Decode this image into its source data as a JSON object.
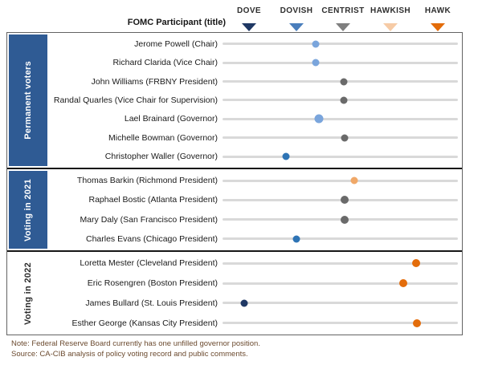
{
  "header": {
    "participant_label": "FOMC Participant (title)",
    "scale": [
      {
        "label": "DOVE",
        "color": "#1F3864"
      },
      {
        "label": "DOVISH",
        "color": "#4A7EBC"
      },
      {
        "label": "CENTRIST",
        "color": "#7F7F7F"
      },
      {
        "label": "HAWKISH",
        "color": "#F6CBA6"
      },
      {
        "label": "HAWK",
        "color": "#E36C0A"
      }
    ]
  },
  "chart_data": {
    "type": "scatter",
    "title": "",
    "x_axis": {
      "labels": [
        "DOVE",
        "DOVISH",
        "CENTRIST",
        "HAWKISH",
        "HAWK"
      ],
      "anchor_pct": [
        11.6,
        31.6,
        51.4,
        71.4,
        91.5
      ],
      "range_pct": [
        0,
        100
      ]
    },
    "palette": {
      "light_blue": "#7AA5DC",
      "medium_blue": "#2E74B5",
      "gray": "#6A6A6A",
      "light_orange": "#F0A868",
      "orange": "#E36C0A",
      "dark_navy": "#1F3864",
      "track": "#D9D9D9",
      "sidebar_blue": "#2F5B94"
    },
    "groups": [
      {
        "label": "Permanent voters",
        "sidebar_style": "blue",
        "members": [
          {
            "name": "Jerome Powell (Chair)",
            "position_pct": 39.5,
            "color_key": "light_blue",
            "size": 9
          },
          {
            "name": "Richard Clarida (Vice Chair)",
            "position_pct": 39.5,
            "color_key": "light_blue",
            "size": 9
          },
          {
            "name": "John Williams (FRBNY President)",
            "position_pct": 51.7,
            "color_key": "gray",
            "size": 9
          },
          {
            "name": "Randal Quarles (Vice Chair for Supervision)",
            "position_pct": 51.7,
            "color_key": "gray",
            "size": 9
          },
          {
            "name": "Lael Brainard (Governor)",
            "position_pct": 40.8,
            "color_key": "light_blue",
            "size": 11
          },
          {
            "name": "Michelle Bowman (Governor)",
            "position_pct": 52.0,
            "color_key": "gray",
            "size": 9
          },
          {
            "name": "Christopher Waller (Governor)",
            "position_pct": 26.9,
            "color_key": "medium_blue",
            "size": 9
          }
        ]
      },
      {
        "label": "Voting in 2021",
        "sidebar_style": "blue",
        "members": [
          {
            "name": "Thomas Barkin (Richmond President)",
            "position_pct": 56.1,
            "color_key": "light_orange",
            "size": 9
          },
          {
            "name": "Raphael Bostic (Atlanta President)",
            "position_pct": 52.0,
            "color_key": "gray",
            "size": 10
          },
          {
            "name": "Mary Daly (San Francisco President)",
            "position_pct": 52.0,
            "color_key": "gray",
            "size": 10
          },
          {
            "name": "Charles Evans (Chicago President)",
            "position_pct": 31.3,
            "color_key": "medium_blue",
            "size": 9
          }
        ]
      },
      {
        "label": "Voting in 2022",
        "sidebar_style": "plain",
        "members": [
          {
            "name": "Loretta Mester (Cleveland President)",
            "position_pct": 82.3,
            "color_key": "orange",
            "size": 10
          },
          {
            "name": "Eric Rosengren (Boston President)",
            "position_pct": 76.9,
            "color_key": "orange",
            "size": 10
          },
          {
            "name": "James Bullard (St. Louis President)",
            "position_pct": 9.2,
            "color_key": "dark_navy",
            "size": 9
          },
          {
            "name": "Esther George (Kansas City President)",
            "position_pct": 82.7,
            "color_key": "orange",
            "size": 10
          }
        ]
      }
    ]
  },
  "notes": {
    "note": "Note: Federal Reserve Board currently has one unfilled  governor position.",
    "source": "Source: CA-CIB analysis of policy voting record and public comments."
  }
}
